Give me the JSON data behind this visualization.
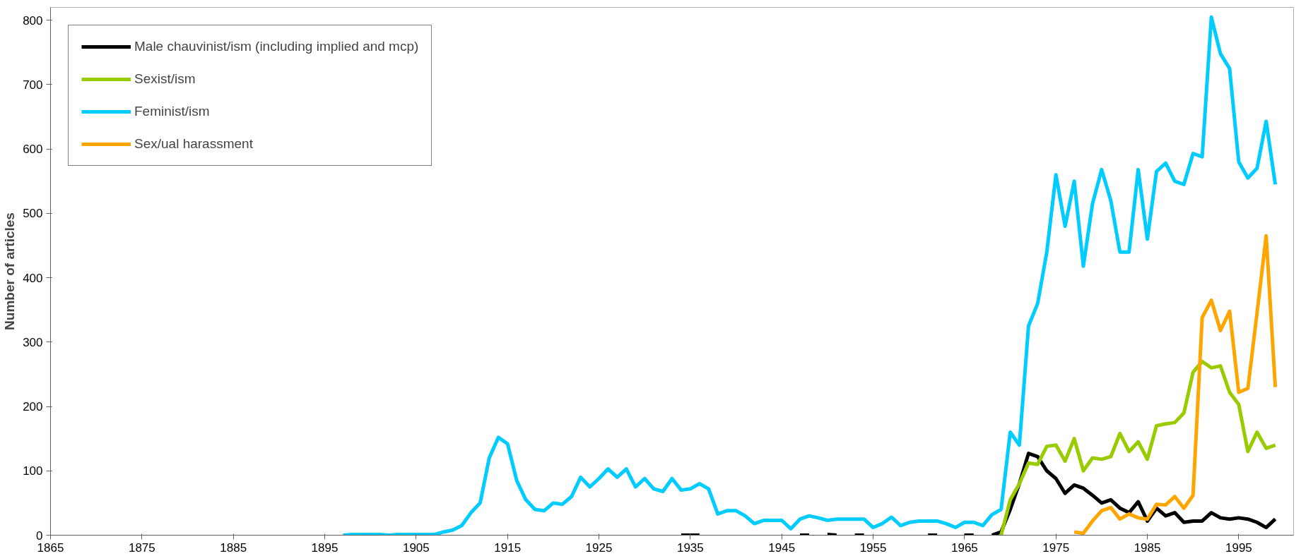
{
  "chart_data": {
    "type": "line",
    "ylabel": "Number of articles",
    "xlim": [
      1865,
      2001
    ],
    "xticks": [
      1865,
      1875,
      1885,
      1895,
      1905,
      1915,
      1925,
      1935,
      1945,
      1955,
      1965,
      1975,
      1985,
      1995
    ],
    "ylim": [
      0,
      820
    ],
    "yticks": [
      0,
      100,
      200,
      300,
      400,
      500,
      600,
      700,
      800
    ],
    "grid": false,
    "legend": "top left",
    "marker": "none",
    "line_style": "solid",
    "series": [
      {
        "name": "Male chauvinist/ism (including implied and mcp)",
        "color": "#000000",
        "x": [
          1934,
          1935,
          1936,
          1937,
          1947,
          1948,
          1949,
          1950,
          1951,
          1952,
          1953,
          1954,
          1955,
          1961,
          1962,
          1963,
          1965,
          1966,
          1967,
          1968,
          1969,
          1970,
          1971,
          1972,
          1973,
          1974,
          1975,
          1976,
          1977,
          1978,
          1979,
          1980,
          1981,
          1982,
          1983,
          1984,
          1985,
          1986,
          1987,
          1988,
          1989,
          1990,
          1991,
          1992,
          1993,
          1994,
          1995,
          1996,
          1997,
          1998,
          1999
        ],
        "values": [
          0,
          0,
          0,
          null,
          0,
          0,
          null,
          1,
          0,
          null,
          0,
          0,
          null,
          0,
          0,
          null,
          0,
          0,
          null,
          0,
          5,
          40,
          80,
          127,
          122,
          100,
          88,
          65,
          78,
          73,
          62,
          50,
          55,
          42,
          35,
          52,
          22,
          42,
          30,
          35,
          20,
          22,
          22,
          35,
          27,
          25,
          27,
          25,
          20,
          12,
          25
        ]
      },
      {
        "name": "Sexist/ism",
        "color": "#99cc00",
        "x": [
          1969,
          1970,
          1971,
          1972,
          1973,
          1974,
          1975,
          1976,
          1977,
          1978,
          1979,
          1980,
          1981,
          1982,
          1983,
          1984,
          1985,
          1986,
          1987,
          1988,
          1989,
          1990,
          1991,
          1992,
          1993,
          1994,
          1995,
          1996,
          1997,
          1998,
          1999
        ],
        "values": [
          0,
          55,
          80,
          112,
          110,
          138,
          140,
          115,
          150,
          100,
          120,
          118,
          122,
          158,
          130,
          145,
          118,
          170,
          173,
          175,
          190,
          253,
          270,
          260,
          263,
          222,
          203,
          130,
          160,
          135,
          140
        ]
      },
      {
        "name": "Feminist/ism",
        "color": "#00ccff",
        "x": [
          1897,
          1898,
          1899,
          1900,
          1901,
          1902,
          1903,
          1904,
          1905,
          1906,
          1907,
          1908,
          1909,
          1910,
          1911,
          1912,
          1913,
          1914,
          1915,
          1916,
          1917,
          1918,
          1919,
          1920,
          1921,
          1922,
          1923,
          1924,
          1925,
          1926,
          1927,
          1928,
          1929,
          1930,
          1931,
          1932,
          1933,
          1934,
          1935,
          1936,
          1937,
          1938,
          1939,
          1940,
          1941,
          1942,
          1943,
          1944,
          1945,
          1946,
          1947,
          1948,
          1949,
          1950,
          1951,
          1952,
          1953,
          1954,
          1955,
          1956,
          1957,
          1958,
          1959,
          1960,
          1961,
          1962,
          1963,
          1964,
          1965,
          1966,
          1967,
          1968,
          1969,
          1970,
          1971,
          1972,
          1973,
          1974,
          1975,
          1976,
          1977,
          1978,
          1979,
          1980,
          1981,
          1982,
          1983,
          1984,
          1985,
          1986,
          1987,
          1988,
          1989,
          1990,
          1991,
          1992,
          1993,
          1994,
          1995,
          1996,
          1997,
          1998,
          1999
        ],
        "values": [
          0,
          1,
          1,
          1,
          1,
          0,
          1,
          1,
          1,
          1,
          1,
          5,
          8,
          15,
          35,
          50,
          120,
          152,
          142,
          85,
          55,
          40,
          38,
          50,
          48,
          60,
          90,
          75,
          88,
          103,
          90,
          103,
          75,
          88,
          72,
          68,
          88,
          70,
          72,
          80,
          72,
          33,
          38,
          38,
          30,
          18,
          23,
          23,
          23,
          10,
          25,
          30,
          27,
          23,
          25,
          25,
          25,
          25,
          12,
          18,
          28,
          15,
          20,
          22,
          22,
          22,
          18,
          12,
          20,
          20,
          15,
          32,
          40,
          160,
          140,
          325,
          360,
          440,
          560,
          480,
          550,
          418,
          515,
          568,
          520,
          440,
          440,
          568,
          460,
          565,
          578,
          550,
          545,
          593,
          588,
          805,
          748,
          725,
          580,
          555,
          570,
          643,
          545
        ]
      },
      {
        "name": "Sex/ual harassment",
        "color": "#ffa500",
        "x": [
          1977,
          1978,
          1979,
          1980,
          1981,
          1982,
          1983,
          1984,
          1985,
          1986,
          1987,
          1988,
          1989,
          1990,
          1991,
          1992,
          1993,
          1994,
          1995,
          1996,
          1997,
          1998,
          1999
        ],
        "values": [
          5,
          3,
          22,
          38,
          43,
          25,
          33,
          27,
          25,
          48,
          47,
          60,
          42,
          62,
          338,
          365,
          318,
          348,
          222,
          228,
          345,
          465,
          230
        ]
      }
    ]
  }
}
